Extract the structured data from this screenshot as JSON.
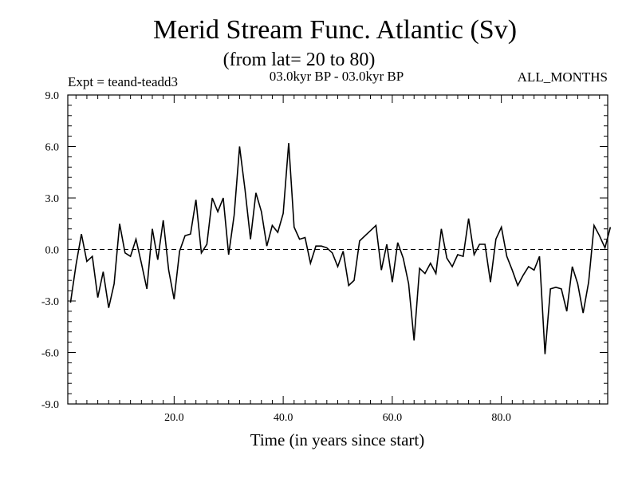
{
  "chart_data": {
    "type": "line",
    "title": "Merid Stream Func. Atlantic (Sv)",
    "subtitle": "(from lat= 20 to 80)",
    "experiment": "Expt = teand-teadd3",
    "period": "03.0kyr BP - 03.0kyr BP",
    "months": "ALL_MONTHS",
    "xlabel": "Time (in years since start)",
    "ylabel": "",
    "xlim": [
      0.5,
      99.5
    ],
    "ylim": [
      -9.0,
      9.0
    ],
    "xticks": [
      20.0,
      40.0,
      60.0,
      80.0
    ],
    "xtick_labels": [
      "20.0",
      "40.0",
      "60.0",
      "80.0"
    ],
    "yticks": [
      -9.0,
      -6.0,
      -3.0,
      0.0,
      3.0,
      6.0,
      9.0
    ],
    "ytick_labels": [
      "-9.0",
      "-6.0",
      "-3.0",
      "0.0",
      "3.0",
      "6.0",
      "9.0"
    ],
    "zero_line": 0.0,
    "x": [
      1,
      2,
      3,
      4,
      5,
      6,
      7,
      8,
      9,
      10,
      11,
      12,
      13,
      14,
      15,
      16,
      17,
      18,
      19,
      20,
      21,
      22,
      23,
      24,
      25,
      26,
      27,
      28,
      29,
      30,
      31,
      32,
      33,
      34,
      35,
      36,
      37,
      38,
      39,
      40,
      41,
      42,
      43,
      44,
      45,
      46,
      47,
      48,
      49,
      50,
      51,
      52,
      53,
      54,
      55,
      56,
      57,
      58,
      59,
      60,
      61,
      62,
      63,
      64,
      65,
      66,
      67,
      68,
      69,
      70,
      71,
      72,
      73,
      74,
      75,
      76,
      77,
      78,
      79,
      80,
      81,
      82,
      83,
      84,
      85,
      86,
      87,
      88,
      89,
      90,
      91,
      92,
      93,
      94,
      95,
      96,
      97,
      98,
      99,
      100
    ],
    "values": [
      -3.1,
      -0.9,
      0.9,
      -0.7,
      -0.4,
      -2.8,
      -1.3,
      -3.4,
      -2.0,
      1.5,
      -0.2,
      -0.4,
      0.6,
      -0.8,
      -2.3,
      1.2,
      -0.6,
      1.7,
      -1.2,
      -2.9,
      -0.1,
      0.8,
      0.9,
      2.9,
      -0.2,
      0.3,
      3.0,
      2.2,
      3.0,
      -0.3,
      2.0,
      6.0,
      3.5,
      0.6,
      3.3,
      2.2,
      0.2,
      1.4,
      1.0,
      2.1,
      6.2,
      1.3,
      0.6,
      0.7,
      -0.8,
      0.2,
      0.2,
      0.1,
      -0.2,
      -1.0,
      -0.1,
      -2.1,
      -1.8,
      0.5,
      0.8,
      1.1,
      1.4,
      -1.2,
      0.3,
      -1.9,
      0.4,
      -0.5,
      -2.0,
      -5.3,
      -1.1,
      -1.4,
      -0.8,
      -1.4,
      1.2,
      -0.5,
      -1.0,
      -0.3,
      -0.4,
      1.8,
      -0.3,
      0.3,
      0.3,
      -1.9,
      0.6,
      1.3,
      -0.4,
      -1.2,
      -2.1,
      -1.5,
      -1.0,
      -1.2,
      -0.4,
      -6.1,
      -2.3,
      -2.2,
      -2.3,
      -3.6,
      -1.0,
      -2.0,
      -3.7,
      -1.9,
      1.4,
      0.8,
      0.1,
      1.3
    ]
  }
}
